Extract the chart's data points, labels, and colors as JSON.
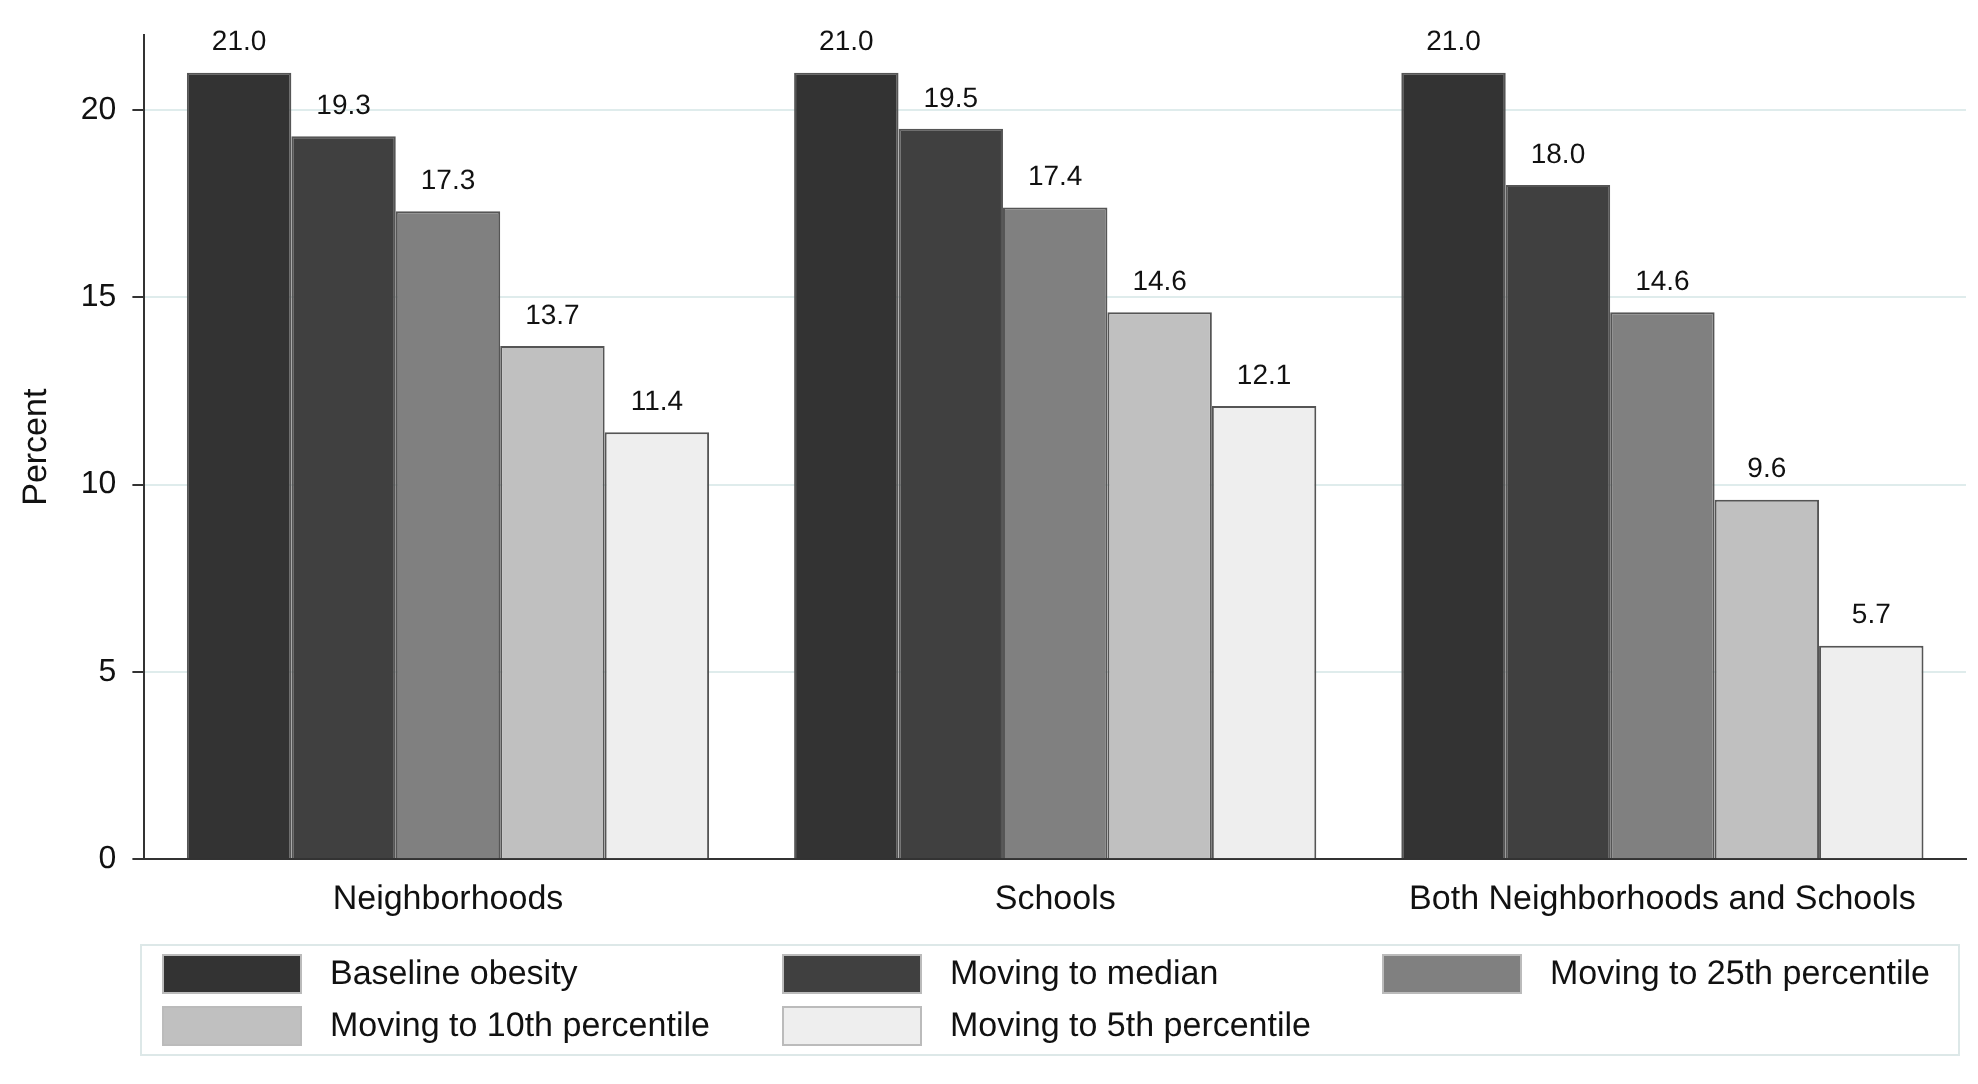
{
  "chart_data": {
    "type": "bar",
    "ylabel": "Percent",
    "categories": [
      "Neighborhoods",
      "Schools",
      "Both Neighborhoods and Schools"
    ],
    "series": [
      {
        "name": "Baseline obesity",
        "color": "#333333",
        "values": [
          21.0,
          21.0,
          21.0
        ],
        "value_labels": [
          "21.0",
          "21.0",
          "21.0"
        ]
      },
      {
        "name": "Moving to median",
        "color": "#404040",
        "values": [
          19.3,
          19.5,
          18.0
        ],
        "value_labels": [
          "19.3",
          "19.5",
          "18.0"
        ]
      },
      {
        "name": "Moving to 25th percentile",
        "color": "#808080",
        "values": [
          17.3,
          17.4,
          14.6
        ],
        "value_labels": [
          "17.3",
          "17.4",
          "14.6"
        ]
      },
      {
        "name": "Moving to 10th percentile",
        "color": "#c0c0c0",
        "values": [
          13.7,
          14.6,
          9.6
        ],
        "value_labels": [
          "13.7",
          "14.6",
          "9.6"
        ]
      },
      {
        "name": "Moving to 5th percentile",
        "color": "#eeeeee",
        "values": [
          11.4,
          12.1,
          5.7
        ],
        "value_labels": [
          "11.4",
          "12.1",
          "5.7"
        ]
      }
    ],
    "ylim": [
      0,
      22
    ],
    "yticks": [
      0,
      5,
      10,
      15,
      20
    ],
    "grid": "y",
    "legend": "bottom"
  }
}
